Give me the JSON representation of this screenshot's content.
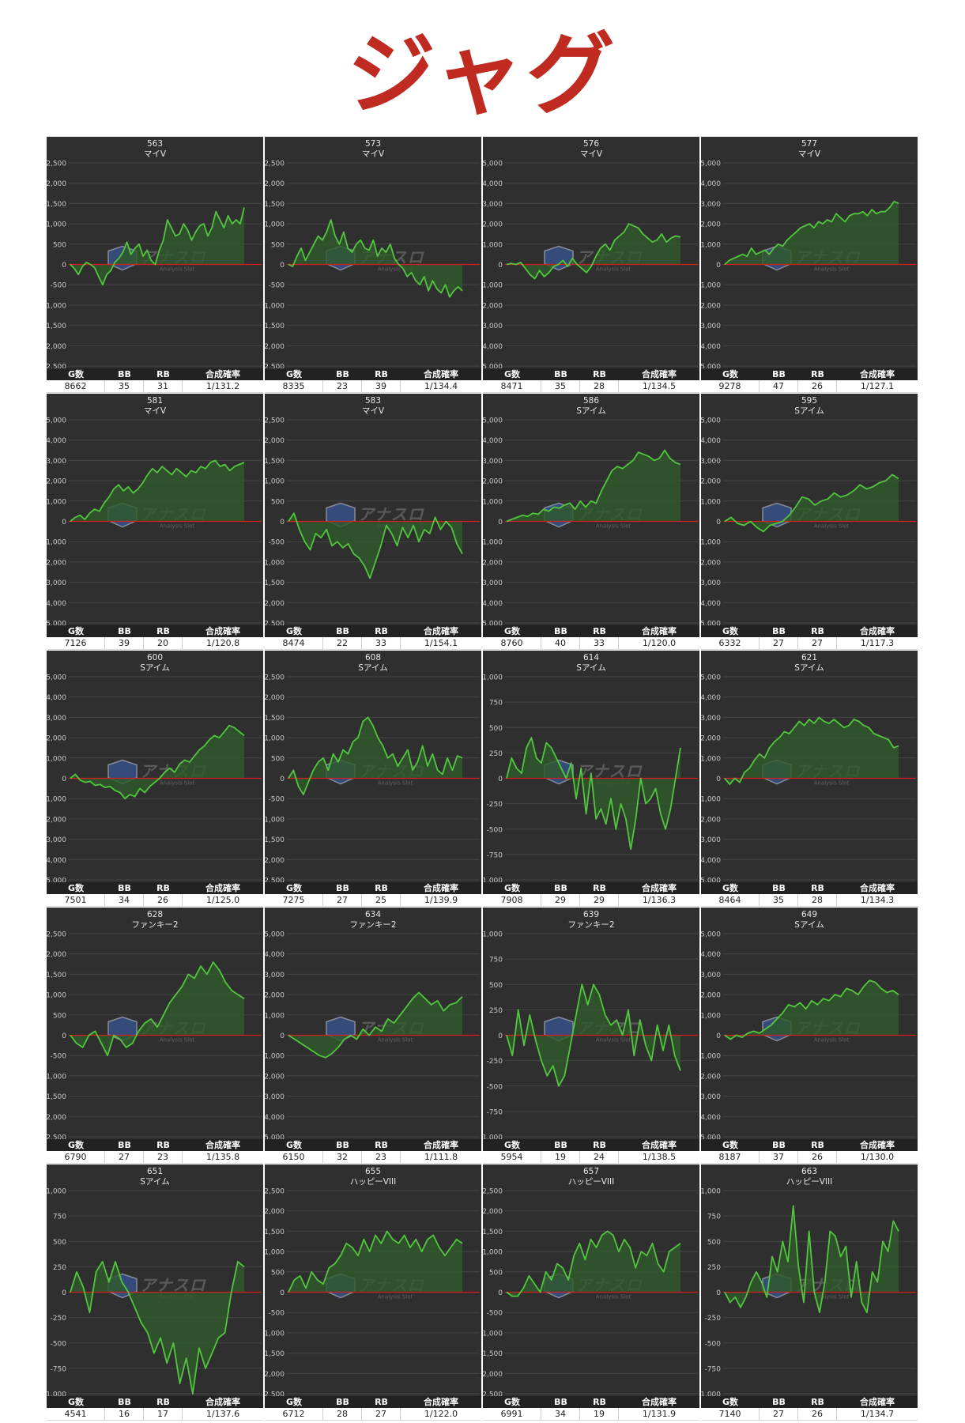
{
  "title": "ジャグ",
  "stat_headers": {
    "games": "G数",
    "bb": "BB",
    "rb": "RB",
    "rate": "合成確率"
  },
  "watermark": {
    "brand": "アナスロ",
    "sub": "Analysis Slot"
  },
  "colors": {
    "panel_bg": "#2f2f2f",
    "line": "#52c63f",
    "fill": "#2f5a2b",
    "zero_line": "#d3201e",
    "title": "#bf2b21"
  },
  "chart_data": [
    {
      "type": "line",
      "number": "563",
      "machine": "マイV",
      "ylim": [
        -2500,
        2500
      ],
      "yticks": [
        2500,
        2000,
        1500,
        1000,
        500,
        0,
        -500,
        -1000,
        -1500,
        -2000,
        -2500
      ],
      "y": [
        0,
        -100,
        -250,
        -50,
        50,
        0,
        -80,
        -300,
        -500,
        -250,
        -150,
        50,
        150,
        300,
        550,
        250,
        400,
        500,
        200,
        350,
        100,
        0,
        350,
        600,
        1100,
        900,
        700,
        750,
        1000,
        850,
        600,
        800,
        950,
        1000,
        700,
        900,
        1300,
        1100,
        900,
        1200,
        1000,
        1100,
        1000,
        1400
      ],
      "stats": {
        "games": "8662",
        "bb": "35",
        "rb": "31",
        "rate": "1/131.2"
      }
    },
    {
      "type": "line",
      "number": "573",
      "machine": "マイV",
      "ylim": [
        -2500,
        2500
      ],
      "yticks": [
        2500,
        2000,
        1500,
        1000,
        500,
        0,
        -500,
        -1000,
        -1500,
        -2000,
        -2500
      ],
      "y": [
        0,
        -50,
        200,
        400,
        100,
        300,
        500,
        700,
        600,
        800,
        1100,
        700,
        500,
        800,
        400,
        300,
        500,
        600,
        400,
        350,
        600,
        200,
        400,
        300,
        500,
        150,
        0,
        -100,
        -300,
        -200,
        -400,
        -500,
        -300,
        -650,
        -400,
        -600,
        -700,
        -500,
        -800,
        -650,
        -550,
        -650
      ],
      "stats": {
        "games": "8335",
        "bb": "23",
        "rb": "39",
        "rate": "1/134.4"
      }
    },
    {
      "type": "line",
      "number": "576",
      "machine": "マイV",
      "ylim": [
        -5000,
        5000
      ],
      "yticks": [
        5000,
        4000,
        3000,
        2000,
        1000,
        0,
        -1000,
        -2000,
        -3000,
        -4000,
        -5000
      ],
      "y": [
        0,
        50,
        0,
        100,
        -200,
        -500,
        -700,
        -300,
        -600,
        -400,
        -100,
        0,
        200,
        -100,
        300,
        0,
        -200,
        -400,
        -100,
        400,
        800,
        1000,
        700,
        1200,
        1400,
        1600,
        2000,
        1900,
        1800,
        1500,
        1300,
        1100,
        1200,
        1500,
        1100,
        1300,
        1400,
        1350
      ],
      "stats": {
        "games": "8471",
        "bb": "35",
        "rb": "28",
        "rate": "1/134.5"
      }
    },
    {
      "type": "line",
      "number": "577",
      "machine": "マイV",
      "ylim": [
        -5000,
        5000
      ],
      "yticks": [
        5000,
        4000,
        3000,
        2000,
        1000,
        0,
        -1000,
        -2000,
        -3000,
        -4000,
        -5000
      ],
      "y": [
        0,
        200,
        300,
        400,
        500,
        400,
        800,
        500,
        600,
        700,
        500,
        800,
        1000,
        900,
        1200,
        1400,
        1600,
        1800,
        1900,
        2000,
        1800,
        2100,
        2000,
        2200,
        2100,
        2500,
        2300,
        2100,
        2400,
        2500,
        2500,
        2600,
        2400,
        2700,
        2500,
        2600,
        2600,
        2800,
        3100,
        3000
      ],
      "stats": {
        "games": "9278",
        "bb": "47",
        "rb": "26",
        "rate": "1/127.1"
      }
    },
    {
      "type": "line",
      "number": "581",
      "machine": "マイV",
      "ylim": [
        -5000,
        5000
      ],
      "yticks": [
        5000,
        4000,
        3000,
        2000,
        1000,
        0,
        -1000,
        -2000,
        -3000,
        -4000,
        -5000
      ],
      "y": [
        0,
        200,
        300,
        100,
        400,
        600,
        500,
        900,
        1200,
        1600,
        1800,
        1500,
        1700,
        1400,
        1600,
        1900,
        2300,
        2600,
        2400,
        2700,
        2500,
        2300,
        2600,
        2400,
        2200,
        2500,
        2400,
        2700,
        2600,
        2900,
        3000,
        2700,
        2800,
        2500,
        2700,
        2800,
        2900
      ],
      "stats": {
        "games": "7126",
        "bb": "39",
        "rb": "20",
        "rate": "1/120.8"
      }
    },
    {
      "type": "line",
      "number": "583",
      "machine": "マイV",
      "ylim": [
        -2500,
        2500
      ],
      "yticks": [
        2500,
        2000,
        1500,
        1000,
        500,
        0,
        -500,
        -1000,
        -1500,
        -2000,
        -2500
      ],
      "y": [
        0,
        200,
        -200,
        -500,
        -700,
        -300,
        -400,
        -200,
        -600,
        -500,
        -650,
        -550,
        -800,
        -900,
        -1100,
        -1400,
        -1000,
        -600,
        -100,
        -300,
        -600,
        -150,
        -400,
        -100,
        -500,
        -200,
        -300,
        100,
        -200,
        0,
        -150,
        -550,
        -800
      ],
      "stats": {
        "games": "8474",
        "bb": "22",
        "rb": "33",
        "rate": "1/154.1"
      }
    },
    {
      "type": "line",
      "number": "586",
      "machine": "Sアイム",
      "ylim": [
        -5000,
        5000
      ],
      "yticks": [
        5000,
        4000,
        3000,
        2000,
        1000,
        0,
        -1000,
        -2000,
        -3000,
        -4000,
        -5000
      ],
      "y": [
        0,
        100,
        200,
        300,
        250,
        400,
        350,
        600,
        500,
        700,
        650,
        800,
        900,
        600,
        1000,
        700,
        1000,
        900,
        1500,
        2000,
        2500,
        2700,
        2600,
        2800,
        3000,
        3400,
        3300,
        3200,
        3000,
        3100,
        3500,
        3100,
        2900,
        2800
      ],
      "stats": {
        "games": "8760",
        "bb": "40",
        "rb": "33",
        "rate": "1/120.0"
      }
    },
    {
      "type": "line",
      "number": "595",
      "machine": "Sアイム",
      "ylim": [
        -5000,
        5000
      ],
      "yticks": [
        5000,
        4000,
        3000,
        2000,
        1000,
        0,
        -1000,
        -2000,
        -3000,
        -4000,
        -5000
      ],
      "y": [
        0,
        200,
        -100,
        -200,
        0,
        -300,
        -500,
        -200,
        -100,
        0,
        300,
        700,
        1200,
        1100,
        800,
        1000,
        1100,
        1400,
        1200,
        1300,
        1500,
        1800,
        1600,
        1700,
        1900,
        2000,
        2300,
        2100
      ],
      "stats": {
        "games": "6332",
        "bb": "27",
        "rb": "27",
        "rate": "1/117.3"
      }
    },
    {
      "type": "line",
      "number": "600",
      "machine": "Sアイム",
      "ylim": [
        -5000,
        5000
      ],
      "yticks": [
        5000,
        4000,
        3000,
        2000,
        1000,
        0,
        -1000,
        -2000,
        -3000,
        -4000,
        -5000
      ],
      "y": [
        0,
        200,
        -100,
        -200,
        -150,
        -350,
        -300,
        -450,
        -400,
        -600,
        -700,
        -1000,
        -800,
        -900,
        -500,
        -700,
        -400,
        -200,
        0,
        300,
        500,
        300,
        700,
        900,
        800,
        1100,
        1400,
        1600,
        1900,
        2100,
        2000,
        2300,
        2600,
        2500,
        2300,
        2100
      ],
      "stats": {
        "games": "7501",
        "bb": "34",
        "rb": "26",
        "rate": "1/125.0"
      }
    },
    {
      "type": "line",
      "number": "608",
      "machine": "Sアイム",
      "ylim": [
        -2500,
        2500
      ],
      "yticks": [
        2500,
        2000,
        1500,
        1000,
        500,
        0,
        -500,
        -1000,
        -1500,
        -2000,
        -2500
      ],
      "y": [
        0,
        200,
        -200,
        -400,
        -100,
        200,
        400,
        500,
        200,
        600,
        400,
        700,
        600,
        900,
        1000,
        1400,
        1500,
        1300,
        1000,
        800,
        500,
        600,
        300,
        500,
        700,
        200,
        400,
        800,
        300,
        600,
        200,
        100,
        500,
        200,
        550,
        500
      ],
      "stats": {
        "games": "7275",
        "bb": "27",
        "rb": "25",
        "rate": "1/139.9"
      }
    },
    {
      "type": "line",
      "number": "614",
      "machine": "Sアイム",
      "ylim": [
        -1000,
        1000
      ],
      "yticks": [
        1000,
        750,
        500,
        250,
        0,
        -250,
        -500,
        -750,
        -1000
      ],
      "y": [
        0,
        200,
        100,
        50,
        300,
        400,
        200,
        150,
        350,
        300,
        200,
        100,
        0,
        150,
        -200,
        100,
        -350,
        50,
        -400,
        -300,
        -450,
        -200,
        -500,
        -250,
        -400,
        -700,
        -400,
        0,
        -250,
        -200,
        -100,
        -350,
        -500,
        -300,
        0,
        300
      ],
      "stats": {
        "games": "7908",
        "bb": "29",
        "rb": "29",
        "rate": "1/136.3"
      }
    },
    {
      "type": "line",
      "number": "621",
      "machine": "Sアイム",
      "ylim": [
        -5000,
        5000
      ],
      "yticks": [
        5000,
        4000,
        3000,
        2000,
        1000,
        0,
        -1000,
        -2000,
        -3000,
        -4000,
        -5000
      ],
      "y": [
        0,
        -300,
        0,
        -200,
        300,
        500,
        900,
        1200,
        1000,
        1500,
        1800,
        2000,
        2300,
        2200,
        2500,
        2800,
        2600,
        2900,
        2700,
        3000,
        2800,
        2700,
        2900,
        2700,
        2500,
        2600,
        2900,
        2800,
        2600,
        2500,
        2200,
        2100,
        2000,
        1900,
        1500,
        1600
      ],
      "stats": {
        "games": "8464",
        "bb": "35",
        "rb": "28",
        "rate": "1/134.3"
      }
    },
    {
      "type": "line",
      "number": "628",
      "machine": "ファンキー2",
      "ylim": [
        -2500,
        2500
      ],
      "yticks": [
        2500,
        2000,
        1500,
        1000,
        500,
        0,
        -500,
        -1000,
        -1500,
        -2000,
        -2500
      ],
      "y": [
        0,
        -200,
        -300,
        0,
        100,
        -200,
        -500,
        0,
        -100,
        -300,
        -200,
        100,
        300,
        400,
        200,
        500,
        800,
        1000,
        1200,
        1500,
        1400,
        1700,
        1500,
        1800,
        1600,
        1300,
        1100,
        1000,
        900
      ],
      "stats": {
        "games": "6790",
        "bb": "27",
        "rb": "23",
        "rate": "1/135.8"
      }
    },
    {
      "type": "line",
      "number": "634",
      "machine": "ファンキー2",
      "ylim": [
        -5000,
        5000
      ],
      "yticks": [
        5000,
        4000,
        3000,
        2000,
        1000,
        0,
        -1000,
        -2000,
        -3000,
        -4000,
        -5000
      ],
      "y": [
        0,
        -200,
        -400,
        -600,
        -800,
        -1000,
        -1100,
        -900,
        -600,
        -200,
        0,
        -200,
        300,
        0,
        400,
        200,
        800,
        600,
        1000,
        1400,
        1800,
        2100,
        1800,
        1500,
        1700,
        1200,
        1500,
        1600,
        1900
      ],
      "stats": {
        "games": "6150",
        "bb": "32",
        "rb": "23",
        "rate": "1/111.8"
      }
    },
    {
      "type": "line",
      "number": "639",
      "machine": "ファンキー2",
      "ylim": [
        -1000,
        1000
      ],
      "yticks": [
        1000,
        750,
        500,
        250,
        0,
        -250,
        -500,
        -750,
        -1000
      ],
      "y": [
        0,
        -200,
        250,
        -100,
        200,
        -50,
        -250,
        -400,
        -300,
        -500,
        -400,
        -100,
        200,
        500,
        300,
        500,
        400,
        200,
        100,
        150,
        0,
        250,
        -200,
        150,
        -100,
        -250,
        100,
        -150,
        100,
        -200,
        -350
      ],
      "stats": {
        "games": "5954",
        "bb": "19",
        "rb": "24",
        "rate": "1/138.5"
      }
    },
    {
      "type": "line",
      "number": "649",
      "machine": "Sアイム",
      "ylim": [
        -5000,
        5000
      ],
      "yticks": [
        5000,
        4000,
        3000,
        2000,
        1000,
        0,
        -1000,
        -2000,
        -3000,
        -4000,
        -5000
      ],
      "y": [
        0,
        -200,
        0,
        -100,
        100,
        200,
        100,
        300,
        500,
        800,
        1100,
        1500,
        1400,
        1600,
        1300,
        1700,
        1500,
        1800,
        1700,
        2000,
        1900,
        2300,
        2200,
        2000,
        2400,
        2700,
        2600,
        2300,
        2100,
        2200,
        2000
      ],
      "stats": {
        "games": "8187",
        "bb": "37",
        "rb": "26",
        "rate": "1/130.0"
      }
    },
    {
      "type": "line",
      "number": "651",
      "machine": "Sアイム",
      "ylim": [
        -1000,
        1000
      ],
      "yticks": [
        1000,
        750,
        500,
        250,
        0,
        -250,
        -500,
        -750,
        -1000
      ],
      "y": [
        0,
        200,
        50,
        -200,
        200,
        300,
        100,
        300,
        100,
        0,
        -150,
        -300,
        -400,
        -600,
        -450,
        -700,
        -500,
        -900,
        -650,
        -1000,
        -550,
        -750,
        -600,
        -450,
        -400,
        0,
        300,
        250
      ],
      "stats": {
        "games": "4541",
        "bb": "16",
        "rb": "17",
        "rate": "1/137.6"
      }
    },
    {
      "type": "line",
      "number": "655",
      "machine": "ハッピーVIII",
      "ylim": [
        -2500,
        2500
      ],
      "yticks": [
        2500,
        2000,
        1500,
        1000,
        500,
        0,
        -500,
        -1000,
        -1500,
        -2000,
        -2500
      ],
      "y": [
        0,
        300,
        400,
        100,
        500,
        300,
        200,
        600,
        700,
        900,
        1200,
        1100,
        900,
        1300,
        1000,
        1400,
        1200,
        1500,
        1300,
        1200,
        1400,
        1100,
        1300,
        1000,
        1300,
        1400,
        1100,
        900,
        1100,
        1300,
        1200
      ],
      "stats": {
        "games": "6712",
        "bb": "28",
        "rb": "27",
        "rate": "1/122.0"
      }
    },
    {
      "type": "line",
      "number": "657",
      "machine": "ハッピーVIII",
      "ylim": [
        -2500,
        2500
      ],
      "yticks": [
        2500,
        2000,
        1500,
        1000,
        500,
        0,
        -500,
        -1000,
        -1500,
        -2000,
        -2500
      ],
      "y": [
        0,
        -100,
        -100,
        100,
        400,
        200,
        0,
        500,
        300,
        700,
        600,
        300,
        900,
        1200,
        800,
        1300,
        1100,
        1400,
        1500,
        1400,
        1000,
        1300,
        1100,
        600,
        1000,
        900,
        1200,
        700,
        500,
        1000,
        1100,
        1200
      ],
      "stats": {
        "games": "6991",
        "bb": "34",
        "rb": "19",
        "rate": "1/131.9"
      }
    },
    {
      "type": "line",
      "number": "663",
      "machine": "ハッピーVIII",
      "ylim": [
        -1000,
        1000
      ],
      "yticks": [
        1000,
        750,
        500,
        250,
        0,
        -250,
        -500,
        -750,
        -1000
      ],
      "y": [
        0,
        -100,
        -50,
        -150,
        -50,
        100,
        200,
        100,
        -50,
        350,
        200,
        500,
        300,
        850,
        250,
        -100,
        600,
        0,
        -200,
        100,
        600,
        550,
        350,
        450,
        -50,
        300,
        -100,
        -200,
        200,
        100,
        500,
        400,
        700,
        600
      ],
      "stats": {
        "games": "7140",
        "bb": "27",
        "rb": "26",
        "rate": "1/134.7"
      }
    }
  ]
}
